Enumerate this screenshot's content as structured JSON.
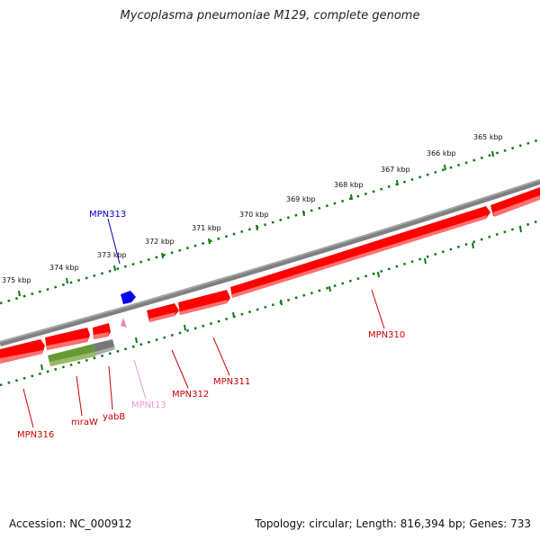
{
  "title": "Mycoplasma pneumoniae M129, complete genome",
  "footer": {
    "accession": "Accession: NC_000912",
    "summary": "Topology: circular; Length: 816,394 bp; Genes: 733"
  },
  "colors": {
    "backbone": "#808080",
    "gene_forward": "#ff0000",
    "gene_reverse_shade": "#ff7070",
    "ruler": "#117711",
    "label_red": "#cc0000",
    "label_blue": "#0000cc",
    "label_pink": "#ee99cc",
    "trna_pink": "#ee88bb",
    "mraW_green": "#669933",
    "pseudo_gray": "#777777"
  },
  "ruler_labels": [
    "365 kbp",
    "366 kbp",
    "367 kbp",
    "368 kbp",
    "369 kbp",
    "370 kbp",
    "371 kbp",
    "372 kbp",
    "373 kbp",
    "374 kbp",
    "375 kbp"
  ],
  "gene_labels": [
    {
      "id": "MPN313",
      "color": "blue"
    },
    {
      "id": "MPN310",
      "color": "red"
    },
    {
      "id": "MPN311",
      "color": "red"
    },
    {
      "id": "MPN312",
      "color": "red"
    },
    {
      "id": "MPNt13",
      "color": "pink"
    },
    {
      "id": "yabB",
      "color": "red"
    },
    {
      "id": "mraW",
      "color": "red"
    },
    {
      "id": "MPN316",
      "color": "red"
    }
  ]
}
